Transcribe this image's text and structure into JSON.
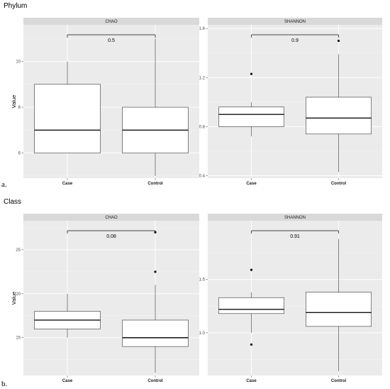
{
  "sections": [
    {
      "title": "Phylum",
      "letter": "a."
    },
    {
      "title": "Class",
      "letter": "b."
    }
  ],
  "chart_data": [
    {
      "type": "boxplot",
      "section": 0,
      "panel": "CHAO",
      "ylabel": "Value",
      "ylim": [
        4.9,
        11.6
      ],
      "yticks": [
        6,
        8,
        10
      ],
      "categories": [
        "Case",
        "Control"
      ],
      "boxes": [
        {
          "category": "Case",
          "whisker_low": 6,
          "q1": 6,
          "median": 7,
          "q3": 9,
          "whisker_high": 10,
          "outliers": []
        },
        {
          "category": "Control",
          "whisker_low": 5,
          "q1": 6,
          "median": 7,
          "q3": 8,
          "whisker_high": 11,
          "outliers": []
        }
      ],
      "pvalue": "0.5",
      "grid": true
    },
    {
      "type": "boxplot",
      "section": 0,
      "panel": "SHANNON",
      "ylabel": "",
      "ylim": [
        0.38,
        1.63
      ],
      "yticks": [
        0.4,
        0.8,
        1.2,
        1.6
      ],
      "categories": [
        "Case",
        "Control"
      ],
      "boxes": [
        {
          "category": "Case",
          "whisker_low": 0.72,
          "q1": 0.8,
          "median": 0.9,
          "q3": 0.96,
          "whisker_high": 1.0,
          "outliers": [
            1.23
          ]
        },
        {
          "category": "Control",
          "whisker_low": 0.43,
          "q1": 0.74,
          "median": 0.87,
          "q3": 1.04,
          "whisker_high": 1.39,
          "outliers": [
            1.5
          ]
        }
      ],
      "pvalue": "0.9",
      "grid": true
    },
    {
      "type": "boxplot",
      "section": 1,
      "panel": "CHAO",
      "ylabel": "Value",
      "ylim": [
        10.7,
        28.3
      ],
      "yticks": [
        15,
        20,
        25
      ],
      "categories": [
        "Case",
        "Control"
      ],
      "boxes": [
        {
          "category": "Case",
          "whisker_low": 15,
          "q1": 16,
          "median": 17,
          "q3": 18,
          "whisker_high": 20,
          "outliers": []
        },
        {
          "category": "Control",
          "whisker_low": 11,
          "q1": 14,
          "median": 15,
          "q3": 17,
          "whisker_high": 21,
          "outliers": [
            22.5,
            27
          ]
        }
      ],
      "pvalue": "0.08",
      "grid": true
    },
    {
      "type": "boxplot",
      "section": 1,
      "panel": "SHANNON",
      "ylabel": "",
      "ylim": [
        0.6,
        2.05
      ],
      "yticks": [
        1.0,
        1.5
      ],
      "yticklabels": [
        "1.0",
        "1.5"
      ],
      "categories": [
        "Case",
        "Control"
      ],
      "boxes": [
        {
          "category": "Case",
          "whisker_low": 1.0,
          "q1": 1.18,
          "median": 1.22,
          "q3": 1.33,
          "whisker_high": 1.38,
          "outliers": [
            1.59,
            0.89
          ]
        },
        {
          "category": "Control",
          "whisker_low": 0.64,
          "q1": 1.06,
          "median": 1.19,
          "q3": 1.38,
          "whisker_high": 1.88,
          "outliers": []
        }
      ],
      "pvalue": "0.91",
      "grid": true
    }
  ]
}
